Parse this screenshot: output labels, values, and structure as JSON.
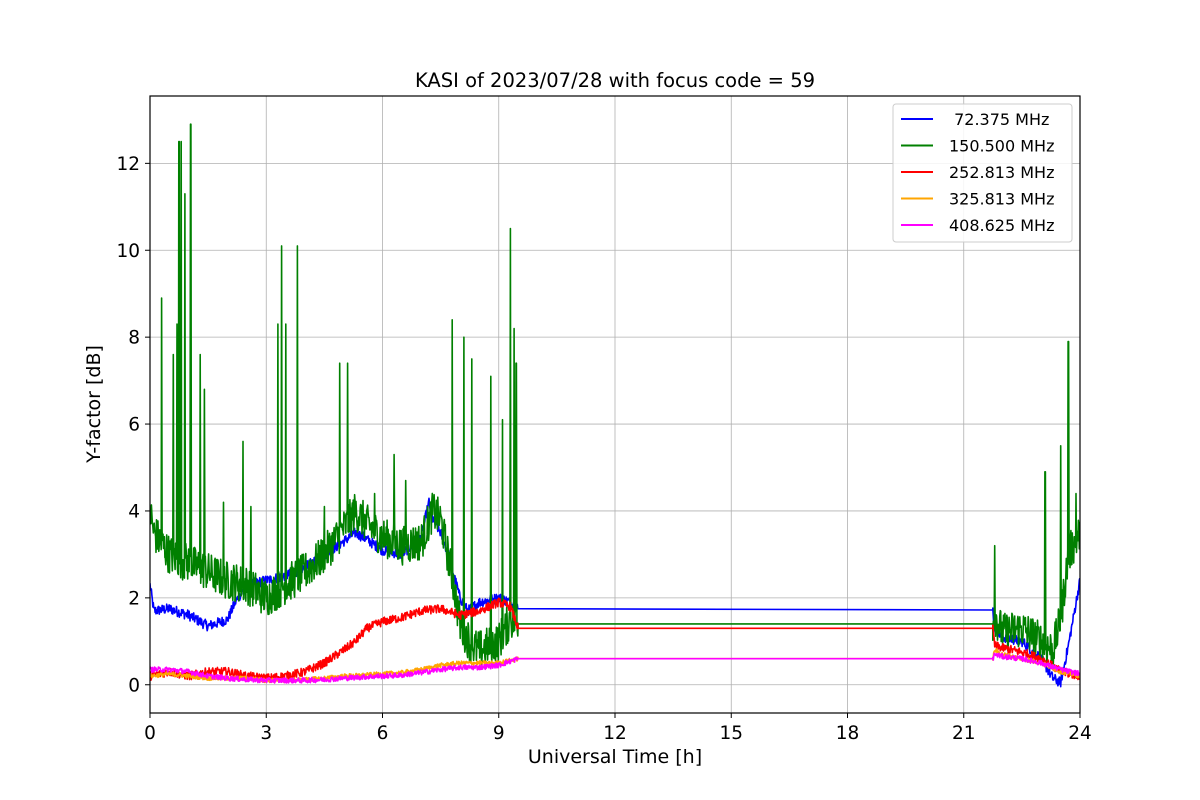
{
  "chart_data": {
    "type": "line",
    "title": "KASI of 2023/07/28 with focus code = 59",
    "xlabel": "Universal Time [h]",
    "ylabel": "Y-factor [dB]",
    "xlim": [
      0,
      24
    ],
    "ylim": [
      -0.65,
      13.55
    ],
    "x_ticks": [
      0,
      3,
      6,
      9,
      12,
      15,
      18,
      21,
      24
    ],
    "x_tick_labels": [
      "0",
      "3",
      "6",
      "9",
      "12",
      "15",
      "18",
      "21",
      "24"
    ],
    "y_ticks": [
      0,
      2,
      4,
      6,
      8,
      10,
      12
    ],
    "y_tick_labels": [
      "0",
      "2",
      "4",
      "6",
      "8",
      "10",
      "12"
    ],
    "grid": true,
    "legend_position": "top-right",
    "series": [
      {
        "name": " 72.375 MHz",
        "color": "#0000ff",
        "points": [
          [
            0,
            2.3
          ],
          [
            0.1,
            1.7
          ],
          [
            0.5,
            1.75
          ],
          [
            1.0,
            1.6
          ],
          [
            1.5,
            1.35
          ],
          [
            2.0,
            1.5
          ],
          [
            2.2,
            1.9
          ],
          [
            2.5,
            2.3
          ],
          [
            3.0,
            2.4
          ],
          [
            3.5,
            2.5
          ],
          [
            4.0,
            2.7
          ],
          [
            4.5,
            3.0
          ],
          [
            5.0,
            3.3
          ],
          [
            5.3,
            3.5
          ],
          [
            5.5,
            3.4
          ],
          [
            6.0,
            3.1
          ],
          [
            6.5,
            3.0
          ],
          [
            7.0,
            3.4
          ],
          [
            7.2,
            4.2
          ],
          [
            7.3,
            3.8
          ],
          [
            7.5,
            3.5
          ],
          [
            7.7,
            3.0
          ],
          [
            8.0,
            2.0
          ],
          [
            8.2,
            1.7
          ],
          [
            8.5,
            1.9
          ],
          [
            9.0,
            2.0
          ],
          [
            9.3,
            1.9
          ],
          [
            9.5,
            1.75
          ],
          [
            21.75,
            1.72
          ],
          [
            21.8,
            1.3
          ],
          [
            22.0,
            1.1
          ],
          [
            22.5,
            1.0
          ],
          [
            23.0,
            0.6
          ],
          [
            23.3,
            0.15
          ],
          [
            23.5,
            0.05
          ],
          [
            23.7,
            0.9
          ],
          [
            24,
            2.4
          ]
        ],
        "noise": 0.12
      },
      {
        "name": "150.500 MHz",
        "color": "#008000",
        "points": [
          [
            0,
            4.0
          ],
          [
            0.1,
            3.5
          ],
          [
            0.5,
            3.0
          ],
          [
            1.0,
            2.8
          ],
          [
            1.5,
            2.6
          ],
          [
            2.0,
            2.4
          ],
          [
            2.5,
            2.3
          ],
          [
            3.0,
            2.0
          ],
          [
            3.5,
            2.3
          ],
          [
            4.0,
            2.6
          ],
          [
            4.5,
            3.0
          ],
          [
            5.0,
            3.6
          ],
          [
            5.3,
            4.0
          ],
          [
            5.6,
            3.7
          ],
          [
            6.0,
            3.4
          ],
          [
            6.5,
            3.2
          ],
          [
            7.0,
            3.3
          ],
          [
            7.3,
            4.0
          ],
          [
            7.5,
            3.8
          ],
          [
            7.8,
            2.5
          ],
          [
            8.0,
            1.4
          ],
          [
            8.3,
            0.9
          ],
          [
            8.5,
            0.8
          ],
          [
            9.0,
            1.0
          ],
          [
            9.3,
            1.5
          ],
          [
            9.5,
            1.4
          ],
          [
            21.75,
            1.4
          ],
          [
            21.8,
            1.6
          ],
          [
            22.0,
            1.2
          ],
          [
            22.5,
            1.3
          ],
          [
            23.0,
            1.0
          ],
          [
            23.3,
            0.8
          ],
          [
            23.5,
            1.5
          ],
          [
            23.7,
            3.0
          ],
          [
            24,
            3.5
          ]
        ],
        "noise": 0.45,
        "spikes": [
          [
            0.3,
            8.9
          ],
          [
            0.6,
            7.6
          ],
          [
            0.7,
            8.3
          ],
          [
            0.75,
            12.5
          ],
          [
            0.8,
            12.5
          ],
          [
            0.9,
            11.3
          ],
          [
            1.05,
            12.9
          ],
          [
            1.3,
            7.6
          ],
          [
            1.4,
            6.8
          ],
          [
            1.9,
            4.2
          ],
          [
            2.4,
            5.6
          ],
          [
            2.6,
            4.1
          ],
          [
            3.3,
            8.3
          ],
          [
            3.4,
            10.1
          ],
          [
            3.5,
            8.3
          ],
          [
            3.8,
            10.1
          ],
          [
            4.5,
            4.1
          ],
          [
            4.9,
            7.4
          ],
          [
            5.1,
            7.4
          ],
          [
            5.8,
            4.4
          ],
          [
            6.3,
            5.3
          ],
          [
            6.6,
            4.7
          ],
          [
            7.8,
            8.4
          ],
          [
            8.1,
            8.0
          ],
          [
            8.3,
            7.5
          ],
          [
            8.8,
            7.1
          ],
          [
            9.1,
            6.1
          ],
          [
            9.3,
            10.5
          ],
          [
            9.4,
            8.2
          ],
          [
            9.45,
            7.4
          ],
          [
            21.8,
            3.2
          ],
          [
            23.1,
            4.9
          ],
          [
            23.5,
            5.5
          ],
          [
            23.7,
            7.9
          ],
          [
            23.9,
            4.4
          ]
        ]
      },
      {
        "name": "252.813 MHz",
        "color": "#ff0000",
        "points": [
          [
            0,
            0.2
          ],
          [
            0.5,
            0.3
          ],
          [
            1.0,
            0.2
          ],
          [
            1.5,
            0.3
          ],
          [
            2.0,
            0.3
          ],
          [
            2.5,
            0.2
          ],
          [
            3.0,
            0.15
          ],
          [
            3.5,
            0.2
          ],
          [
            4.0,
            0.3
          ],
          [
            4.5,
            0.5
          ],
          [
            5.0,
            0.8
          ],
          [
            5.3,
            1.0
          ],
          [
            5.6,
            1.3
          ],
          [
            6.0,
            1.45
          ],
          [
            6.5,
            1.55
          ],
          [
            7.0,
            1.7
          ],
          [
            7.5,
            1.75
          ],
          [
            8.0,
            1.6
          ],
          [
            8.5,
            1.7
          ],
          [
            9.0,
            1.9
          ],
          [
            9.3,
            1.8
          ],
          [
            9.5,
            1.3
          ],
          [
            21.75,
            1.3
          ],
          [
            21.8,
            0.9
          ],
          [
            22.0,
            0.85
          ],
          [
            22.5,
            0.75
          ],
          [
            23.0,
            0.6
          ],
          [
            23.5,
            0.3
          ],
          [
            24,
            0.2
          ]
        ],
        "noise": 0.1
      },
      {
        "name": "325.813 MHz",
        "color": "#ffa500",
        "points": [
          [
            0,
            0.2
          ],
          [
            0.5,
            0.25
          ],
          [
            1.0,
            0.2
          ],
          [
            1.5,
            0.15
          ],
          [
            2.0,
            0.15
          ],
          [
            2.5,
            0.15
          ],
          [
            3.0,
            0.1
          ],
          [
            3.5,
            0.1
          ],
          [
            4.0,
            0.12
          ],
          [
            4.5,
            0.15
          ],
          [
            5.0,
            0.2
          ],
          [
            5.5,
            0.22
          ],
          [
            6.0,
            0.25
          ],
          [
            6.5,
            0.28
          ],
          [
            7.0,
            0.35
          ],
          [
            7.5,
            0.45
          ],
          [
            8.0,
            0.5
          ],
          [
            8.5,
            0.5
          ],
          [
            9.0,
            0.5
          ],
          [
            9.5,
            0.6
          ],
          [
            21.75,
            0.6
          ],
          [
            21.8,
            0.8
          ],
          [
            22.0,
            0.7
          ],
          [
            22.5,
            0.6
          ],
          [
            23.0,
            0.5
          ],
          [
            23.5,
            0.3
          ],
          [
            24,
            0.2
          ]
        ],
        "noise": 0.05
      },
      {
        "name": "408.625 MHz",
        "color": "#ff00ff",
        "points": [
          [
            0,
            0.35
          ],
          [
            0.5,
            0.35
          ],
          [
            1.0,
            0.3
          ],
          [
            1.5,
            0.2
          ],
          [
            2.0,
            0.15
          ],
          [
            2.5,
            0.12
          ],
          [
            3.0,
            0.1
          ],
          [
            3.5,
            0.1
          ],
          [
            4.0,
            0.1
          ],
          [
            4.5,
            0.12
          ],
          [
            5.0,
            0.15
          ],
          [
            5.5,
            0.18
          ],
          [
            6.0,
            0.2
          ],
          [
            6.5,
            0.22
          ],
          [
            7.0,
            0.28
          ],
          [
            7.5,
            0.35
          ],
          [
            8.0,
            0.4
          ],
          [
            8.5,
            0.4
          ],
          [
            9.0,
            0.45
          ],
          [
            9.5,
            0.6
          ],
          [
            21.75,
            0.6
          ],
          [
            21.8,
            0.7
          ],
          [
            22.0,
            0.65
          ],
          [
            22.5,
            0.6
          ],
          [
            23.0,
            0.5
          ],
          [
            23.5,
            0.35
          ],
          [
            24,
            0.25
          ]
        ],
        "noise": 0.06
      }
    ]
  }
}
